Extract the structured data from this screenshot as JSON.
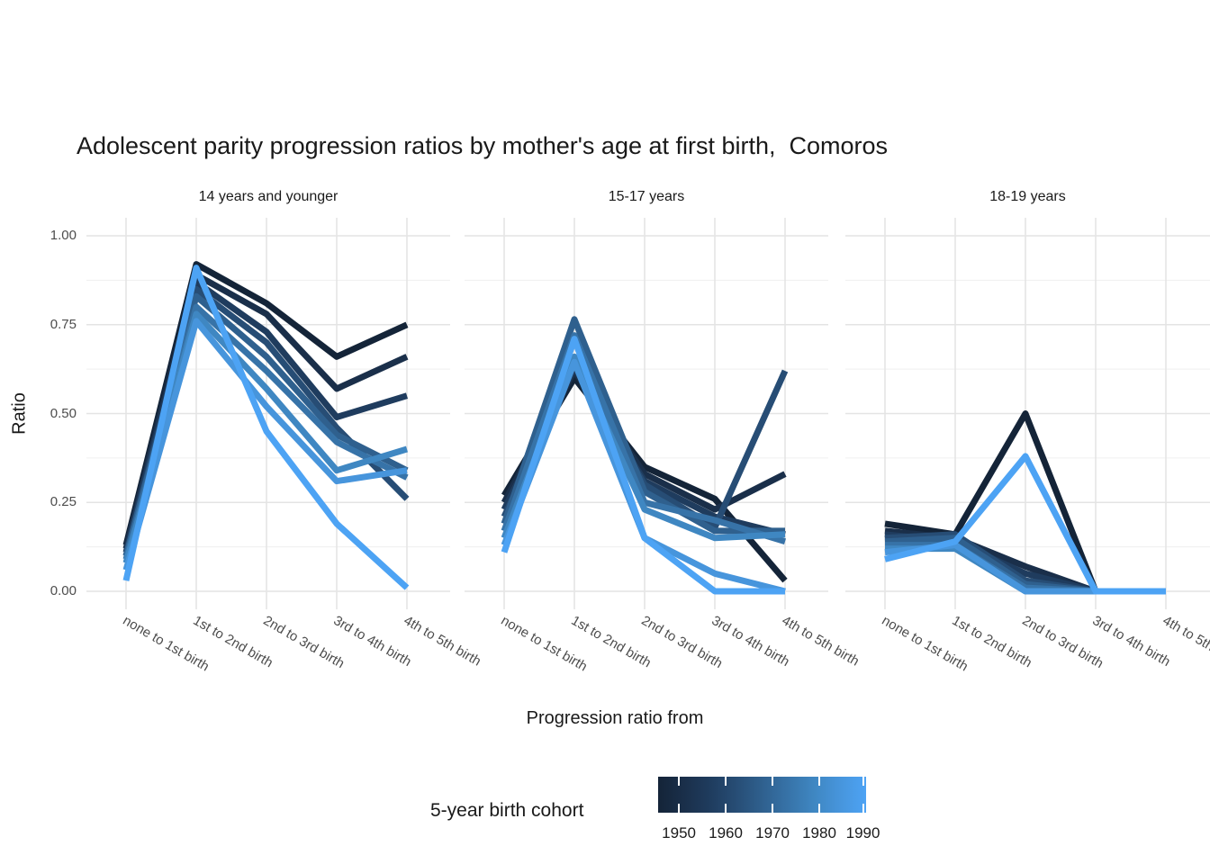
{
  "chart_data": {
    "type": "line",
    "title": "Adolescent parity progression ratios by mother's age at first birth,  Comoros",
    "xlabel": "Progression ratio from",
    "ylabel": "Ratio",
    "grid": true,
    "legend_position": "bottom",
    "categories": [
      "none to 1st birth",
      "1st to 2nd birth",
      "2nd to 3rd birth",
      "3rd to 4th birth",
      "4th to 5th birth"
    ],
    "y_axis": {
      "ticks": [
        {
          "label": "1.00",
          "value": 1.0
        },
        {
          "label": "0.75",
          "value": 0.75
        },
        {
          "label": "0.50",
          "value": 0.5
        },
        {
          "label": "0.25",
          "value": 0.25
        },
        {
          "label": "0.00",
          "value": 0.0
        }
      ],
      "minor_ticks": [
        0.125,
        0.375,
        0.625,
        0.875
      ],
      "ylim": [
        0,
        1
      ]
    },
    "legend": {
      "title": "5-year birth cohort",
      "type": "colorbar",
      "tick_labels": [
        "1950",
        "1960",
        "1970",
        "1980",
        "1990"
      ]
    },
    "cohorts": [
      {
        "name": "1950",
        "color": "#142438"
      },
      {
        "name": "1955",
        "color": "#1a2f4a"
      },
      {
        "name": "1960",
        "color": "#1f3c5e"
      },
      {
        "name": "1965",
        "color": "#274d75"
      },
      {
        "name": "1970",
        "color": "#2f608e"
      },
      {
        "name": "1975",
        "color": "#3773a8"
      },
      {
        "name": "1980",
        "color": "#3f87c2"
      },
      {
        "name": "1985",
        "color": "#4795dc"
      },
      {
        "name": "1990",
        "color": "#4da3f4"
      }
    ],
    "facets": [
      {
        "label": "14 years and younger",
        "series": [
          {
            "name": "1950",
            "values": [
              0.13,
              0.92,
              0.81,
              0.66,
              0.75
            ]
          },
          {
            "name": "1955",
            "values": [
              0.12,
              0.89,
              0.78,
              0.57,
              0.66
            ]
          },
          {
            "name": "1960",
            "values": [
              0.11,
              0.87,
              0.73,
              0.49,
              0.55
            ]
          },
          {
            "name": "1965",
            "values": [
              0.1,
              0.85,
              0.7,
              0.46,
              0.26
            ]
          },
          {
            "name": "1970",
            "values": [
              0.1,
              0.83,
              0.66,
              0.44,
              0.34
            ]
          },
          {
            "name": "1975",
            "values": [
              0.09,
              0.8,
              0.62,
              0.42,
              0.32
            ]
          },
          {
            "name": "1980",
            "values": [
              0.08,
              0.78,
              0.57,
              0.34,
              0.4
            ]
          },
          {
            "name": "1985",
            "values": [
              0.06,
              0.76,
              0.52,
              0.31,
              0.34
            ]
          },
          {
            "name": "1990",
            "values": [
              0.03,
              0.91,
              0.45,
              0.19,
              0.01
            ]
          }
        ]
      },
      {
        "label": "15-17 years",
        "series": [
          {
            "name": "1950",
            "values": [
              0.27,
              0.6,
              0.35,
              0.26,
              0.03
            ]
          },
          {
            "name": "1955",
            "values": [
              0.25,
              0.62,
              0.33,
              0.23,
              0.33
            ]
          },
          {
            "name": "1960",
            "values": [
              0.23,
              0.63,
              0.31,
              0.21,
              0.16
            ]
          },
          {
            "name": "1965",
            "values": [
              0.21,
              0.64,
              0.3,
              0.18,
              0.62
            ]
          },
          {
            "name": "1970",
            "values": [
              0.19,
              0.765,
              0.28,
              0.17,
              0.17
            ]
          },
          {
            "name": "1975",
            "values": [
              0.17,
              0.72,
              0.25,
              0.2,
              0.14
            ]
          },
          {
            "name": "1980",
            "values": [
              0.15,
              0.66,
              0.23,
              0.15,
              0.16
            ]
          },
          {
            "name": "1985",
            "values": [
              0.13,
              0.645,
              0.15,
              0.05,
              0.0
            ]
          },
          {
            "name": "1990",
            "values": [
              0.11,
              0.71,
              0.15,
              0.0,
              0.0
            ]
          }
        ]
      },
      {
        "label": "18-19 years",
        "series": [
          {
            "name": "1950",
            "values": [
              0.19,
              0.16,
              0.5,
              0.0,
              null
            ]
          },
          {
            "name": "1955",
            "values": [
              0.17,
              0.15,
              0.07,
              0.0,
              null
            ]
          },
          {
            "name": "1960",
            "values": [
              0.16,
              0.14,
              0.05,
              0.0,
              null
            ]
          },
          {
            "name": "1965",
            "values": [
              0.15,
              0.16,
              0.03,
              0.0,
              null
            ]
          },
          {
            "name": "1970",
            "values": [
              0.14,
              0.15,
              0.02,
              0.0,
              null
            ]
          },
          {
            "name": "1975",
            "values": [
              0.13,
              0.13,
              0.01,
              0.0,
              null
            ]
          },
          {
            "name": "1980",
            "values": [
              0.12,
              0.12,
              0.0,
              0.0,
              null
            ]
          },
          {
            "name": "1985",
            "values": [
              0.11,
              0.13,
              0.0,
              0.0,
              null
            ]
          },
          {
            "name": "1990",
            "values": [
              0.09,
              0.14,
              0.38,
              0.0,
              0.0
            ]
          }
        ]
      }
    ],
    "style": {
      "grid_major_color": "#e4e4e4",
      "grid_minor_color": "#efefef",
      "line_width": 7
    }
  }
}
